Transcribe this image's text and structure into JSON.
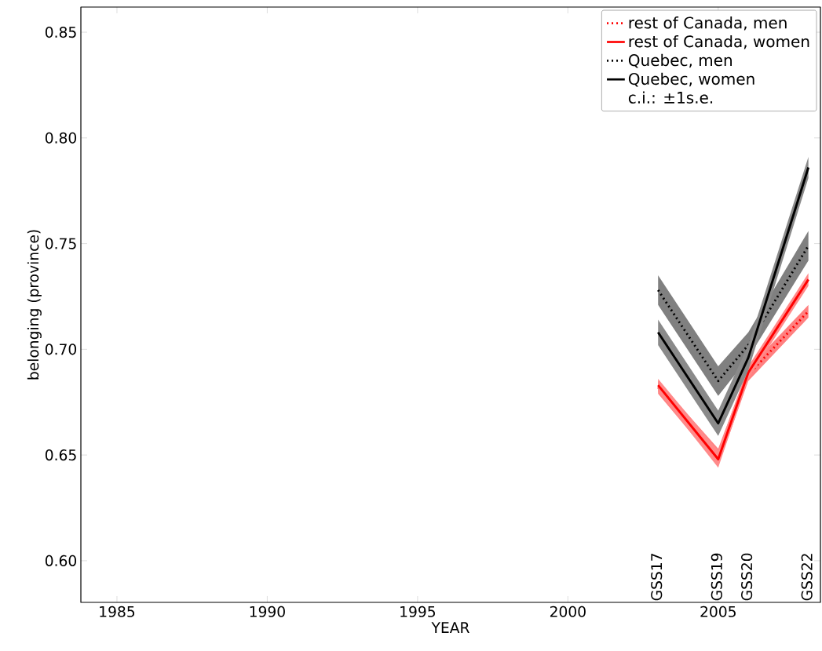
{
  "chart_data": {
    "type": "line",
    "xlabel": "YEAR",
    "ylabel": "belonging (province)",
    "x": [
      2003,
      2005,
      2006,
      2008
    ],
    "series": [
      {
        "name": "rest of Canada, men",
        "color": "#ff0000",
        "line_style": "dotted",
        "values": [
          0.682,
          0.649,
          0.688,
          0.718
        ],
        "lower": [
          0.679,
          0.645,
          0.685,
          0.715
        ],
        "upper": [
          0.685,
          0.653,
          0.691,
          0.721
        ]
      },
      {
        "name": "rest of Canada, women",
        "color": "#ff0000",
        "line_style": "solid",
        "values": [
          0.683,
          0.648,
          0.689,
          0.733
        ],
        "lower": [
          0.68,
          0.644,
          0.686,
          0.73
        ],
        "upper": [
          0.686,
          0.652,
          0.692,
          0.736
        ]
      },
      {
        "name": "Quebec, men",
        "color": "#000000",
        "line_style": "dotted",
        "values": [
          0.728,
          0.685,
          0.702,
          0.749
        ],
        "lower": [
          0.721,
          0.678,
          0.696,
          0.742
        ],
        "upper": [
          0.735,
          0.692,
          0.708,
          0.756
        ]
      },
      {
        "name": "Quebec, women",
        "color": "#000000",
        "line_style": "solid",
        "values": [
          0.708,
          0.665,
          0.696,
          0.786
        ],
        "lower": [
          0.702,
          0.659,
          0.69,
          0.781
        ],
        "upper": [
          0.714,
          0.671,
          0.702,
          0.791
        ]
      }
    ],
    "xlim": [
      1983.8,
      2008.4
    ],
    "ylim": [
      0.5803,
      0.8619
    ],
    "xticks": [
      1985,
      1990,
      1995,
      2000,
      2005
    ],
    "yticks": [
      {
        "value": 0.6,
        "label": "0.60"
      },
      {
        "value": 0.65,
        "label": "0.65"
      },
      {
        "value": 0.7,
        "label": "0.70"
      },
      {
        "value": 0.75,
        "label": "0.75"
      },
      {
        "value": 0.8,
        "label": "0.80"
      },
      {
        "value": 0.85,
        "label": "0.85"
      }
    ],
    "legend": "top right",
    "grid": false,
    "annotations": [
      "c.i.: ±1s.e.",
      "GSS17",
      "GSS19",
      "GSS20",
      "GSS22"
    ]
  }
}
